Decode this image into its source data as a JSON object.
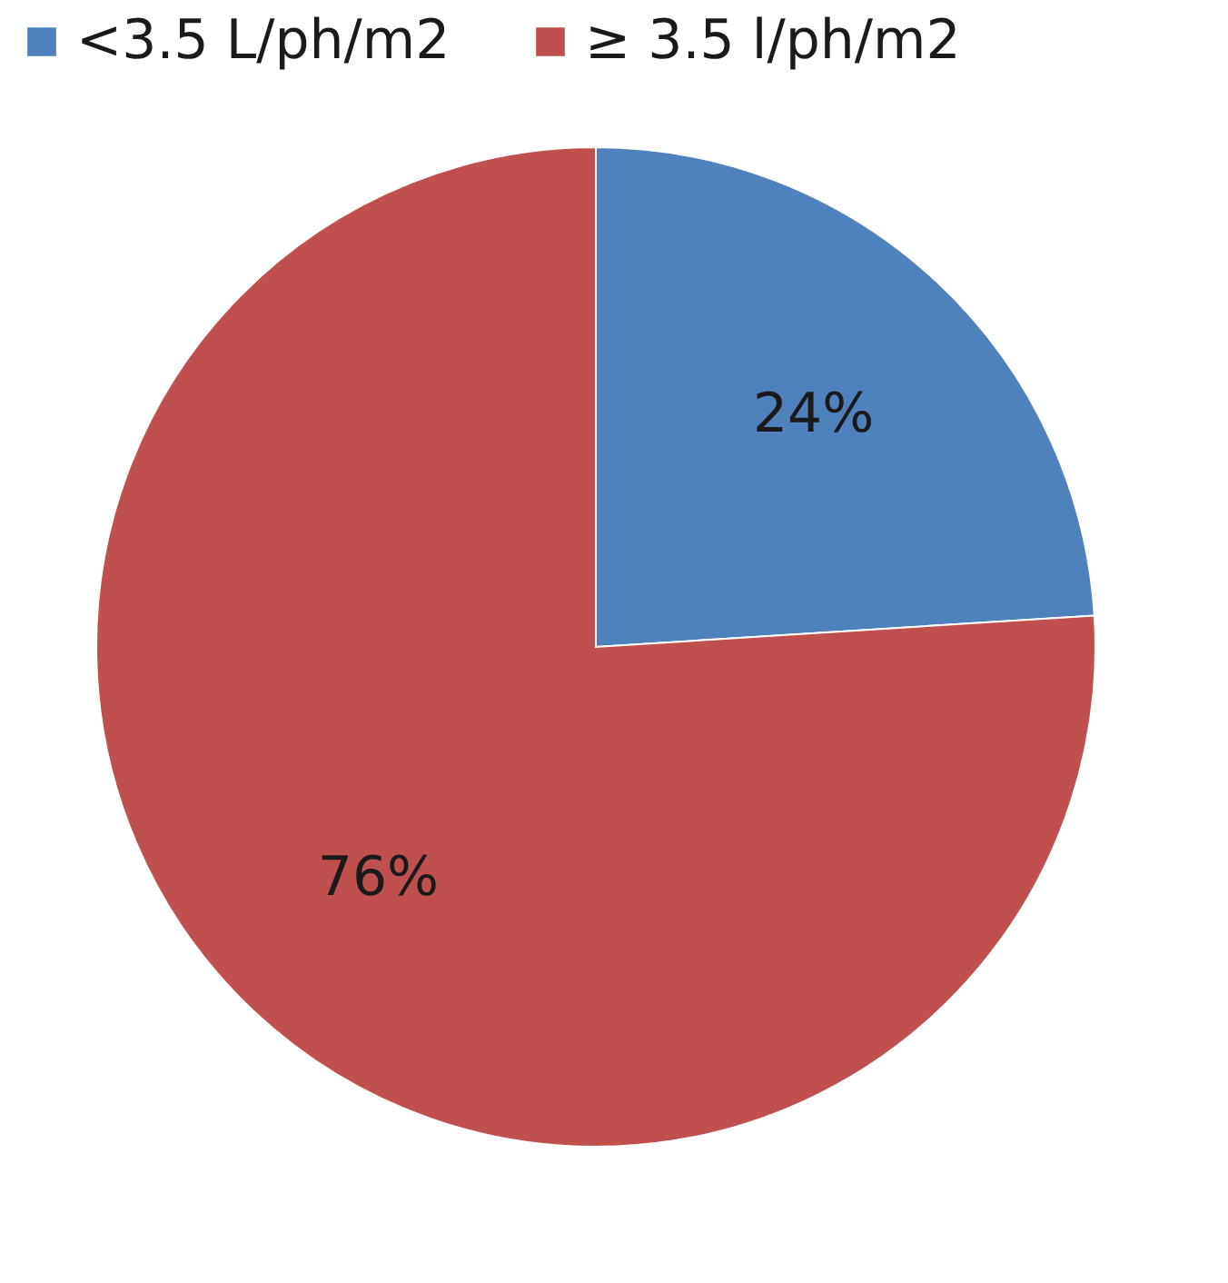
{
  "chart_data": {
    "type": "pie",
    "categories": [
      "<3.5 L/ph/m2",
      "≥ 3.5 l/ph/m2"
    ],
    "values": [
      24,
      76
    ],
    "colors": [
      "#4f81bd",
      "#c0504d"
    ],
    "value_labels": [
      "24%",
      "76%"
    ],
    "legend": "top"
  }
}
